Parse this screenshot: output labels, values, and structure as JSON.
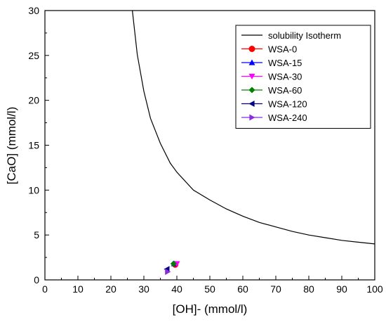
{
  "chart_data": {
    "type": "scatter",
    "xlabel": "[OH]- (mmol/l)",
    "ylabel": "[CaO] (mmol/l)",
    "xlim": [
      0,
      100
    ],
    "ylim": [
      0,
      30
    ],
    "x_ticks": [
      "0",
      "10",
      "20",
      "30",
      "40",
      "50",
      "60",
      "70",
      "80",
      "90",
      "100"
    ],
    "y_ticks": [
      "0",
      "5",
      "10",
      "15",
      "20",
      "25",
      "30"
    ],
    "grid": false,
    "legend_position": "top-right",
    "curve": {
      "name": "solubility Isotherm",
      "color": "#000000",
      "x": [
        26.5,
        28,
        30,
        32,
        35,
        38,
        40,
        45,
        50,
        55,
        60,
        65,
        70,
        75,
        80,
        85,
        90,
        95,
        100
      ],
      "y": [
        30,
        25.1,
        21.0,
        18.0,
        15.2,
        13.0,
        12.0,
        10.0,
        8.9,
        7.9,
        7.1,
        6.4,
        5.9,
        5.4,
        5.0,
        4.7,
        4.4,
        4.2,
        4.0
      ]
    },
    "series": [
      {
        "name": "WSA-0",
        "marker": "circle",
        "color": "#ff0000",
        "x": [
          39.5
        ],
        "y": [
          1.7
        ]
      },
      {
        "name": "WSA-15",
        "marker": "triangle-up",
        "color": "#0000ff",
        "x": [
          39.2
        ],
        "y": [
          1.8
        ]
      },
      {
        "name": "WSA-30",
        "marker": "triangle-down",
        "color": "#ff00ff",
        "x": [
          40.0
        ],
        "y": [
          1.8
        ]
      },
      {
        "name": "WSA-60",
        "marker": "diamond",
        "color": "#008000",
        "x": [
          39.0
        ],
        "y": [
          1.8
        ]
      },
      {
        "name": "WSA-120",
        "marker": "triangle-left",
        "color": "#000080",
        "x": [
          37.0
        ],
        "y": [
          1.2
        ]
      },
      {
        "name": "WSA-240",
        "marker": "triangle-right",
        "color": "#8a2be2",
        "x": [
          37.2
        ],
        "y": [
          0.9
        ]
      }
    ]
  }
}
